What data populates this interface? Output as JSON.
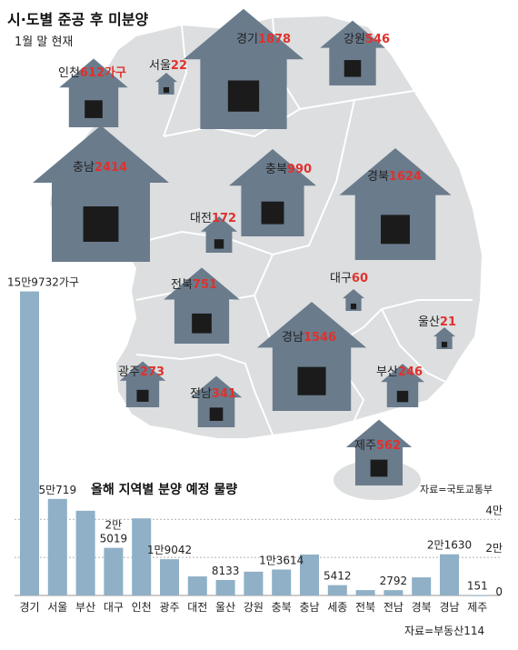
{
  "colors": {
    "map_fill": "#dcdedf",
    "map_stroke": "#ffffff",
    "house": "#6a7b8c",
    "house_door": "#1b1b1b",
    "bar": "#8fb0c6",
    "accent_red": "#e0312d",
    "text": "#222222",
    "grid": "#9a9a9a"
  },
  "chart_data": [
    {
      "type": "map-symbols",
      "title": "시·도별 준공 후 미분양",
      "subtitle": "1월 말 현재",
      "unit_suffix": "가구",
      "regions": [
        {
          "name": "경기",
          "value": 1878,
          "value_label": "1878"
        },
        {
          "name": "강원",
          "value": 546,
          "value_label": "546"
        },
        {
          "name": "인천",
          "value": 612,
          "value_label": "612가구"
        },
        {
          "name": "서울",
          "value": 22,
          "value_label": "22"
        },
        {
          "name": "충남",
          "value": 2414,
          "value_label": "2414"
        },
        {
          "name": "충북",
          "value": 990,
          "value_label": "990"
        },
        {
          "name": "경북",
          "value": 1624,
          "value_label": "1624"
        },
        {
          "name": "대전",
          "value": 172,
          "value_label": "172"
        },
        {
          "name": "대구",
          "value": 60,
          "value_label": "60"
        },
        {
          "name": "전북",
          "value": 751,
          "value_label": "751"
        },
        {
          "name": "울산",
          "value": 21,
          "value_label": "21"
        },
        {
          "name": "경남",
          "value": 1546,
          "value_label": "1546"
        },
        {
          "name": "광주",
          "value": 273,
          "value_label": "273"
        },
        {
          "name": "부산",
          "value": 246,
          "value_label": "246"
        },
        {
          "name": "전남",
          "value": 341,
          "value_label": "341"
        },
        {
          "name": "제주",
          "value": 562,
          "value_label": "562"
        }
      ],
      "source": "자료=국토교통부"
    },
    {
      "type": "bar",
      "title": "올해 지역별 분양 예정 물량",
      "categories": [
        "경기",
        "서울",
        "부산",
        "대구",
        "인천",
        "광주",
        "대전",
        "울산",
        "강원",
        "충북",
        "충남",
        "세종",
        "전북",
        "전남",
        "경북",
        "경남",
        "제주"
      ],
      "values": [
        159732,
        50719,
        44500,
        25019,
        40500,
        19042,
        10000,
        8133,
        12500,
        13614,
        21500,
        5412,
        2800,
        2792,
        9500,
        21630,
        151
      ],
      "value_labels": [
        {
          "category": "경기",
          "text": "15만9732가구"
        },
        {
          "category": "서울",
          "text": "5만719"
        },
        {
          "category": "대구",
          "text": "2만\n5019"
        },
        {
          "category": "광주",
          "text": "1만9042"
        },
        {
          "category": "울산",
          "text": "8133"
        },
        {
          "category": "충북",
          "text": "1만3614"
        },
        {
          "category": "세종",
          "text": "5412"
        },
        {
          "category": "전남",
          "text": "2792"
        },
        {
          "category": "경남",
          "text": "2만1630"
        },
        {
          "category": "제주",
          "text": "151"
        }
      ],
      "yticks": [
        {
          "value": 0,
          "label": "0"
        },
        {
          "value": 20000,
          "label": "2만"
        },
        {
          "value": 40000,
          "label": "4만"
        }
      ],
      "ylim": [
        0,
        160000
      ],
      "grid": true,
      "source": "자료=부동산114"
    }
  ]
}
